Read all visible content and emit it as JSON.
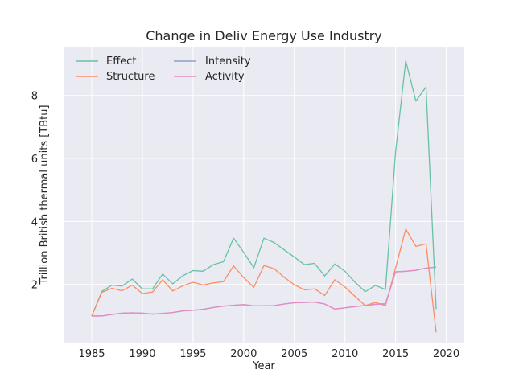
{
  "chart_data": {
    "type": "line",
    "title": "Change in Deliv Energy Use Industry",
    "xlabel": "Year",
    "ylabel": "Trillion British thermal units [TBtu]",
    "xlim": [
      1982.3,
      2021.7
    ],
    "ylim": [
      0.13,
      9.55
    ],
    "xticks": [
      1985,
      1990,
      1995,
      2000,
      2005,
      2010,
      2015,
      2020
    ],
    "yticks": [
      2,
      4,
      6,
      8
    ],
    "grid": true,
    "legend": {
      "placement": "top-left",
      "columns": 2
    },
    "x": [
      1985,
      1986,
      1987,
      1988,
      1989,
      1990,
      1991,
      1992,
      1993,
      1994,
      1995,
      1996,
      1997,
      1998,
      1999,
      2000,
      2001,
      2002,
      2003,
      2004,
      2005,
      2006,
      2007,
      2008,
      2009,
      2010,
      2011,
      2012,
      2013,
      2014,
      2015,
      2016,
      2017,
      2018,
      2019
    ],
    "series": [
      {
        "name": "Effect",
        "color": "#66c2a5",
        "values": [
          1.0,
          1.78,
          1.98,
          1.95,
          2.17,
          1.86,
          1.86,
          2.33,
          2.02,
          2.28,
          2.44,
          2.42,
          2.63,
          2.72,
          3.47,
          3.02,
          2.53,
          3.47,
          3.33,
          3.1,
          2.87,
          2.63,
          2.67,
          2.27,
          2.65,
          2.42,
          2.07,
          1.77,
          1.97,
          1.84,
          6.22,
          9.1,
          7.82,
          8.27,
          1.22
        ]
      },
      {
        "name": "Structure",
        "color": "#fc8d62",
        "values": [
          1.0,
          1.75,
          1.88,
          1.8,
          1.98,
          1.71,
          1.76,
          2.15,
          1.79,
          1.96,
          2.07,
          1.98,
          2.05,
          2.09,
          2.59,
          2.22,
          1.91,
          2.6,
          2.5,
          2.23,
          1.99,
          1.83,
          1.86,
          1.65,
          2.15,
          1.92,
          1.62,
          1.33,
          1.43,
          1.33,
          2.53,
          3.76,
          3.21,
          3.29,
          0.48
        ]
      },
      {
        "name": "Intensity",
        "color": "#8da0cb",
        "values": [
          1.0,
          1.0,
          1.05,
          1.09,
          1.1,
          1.09,
          1.06,
          1.08,
          1.11,
          1.16,
          1.18,
          1.21,
          1.27,
          1.31,
          1.34,
          1.36,
          1.32,
          1.32,
          1.33,
          1.38,
          1.42,
          1.43,
          1.44,
          1.38,
          1.22,
          1.26,
          1.3,
          1.33,
          1.37,
          1.39,
          2.4,
          2.42,
          2.45,
          2.52,
          2.55
        ]
      },
      {
        "name": "Activity",
        "color": "#e78ac3",
        "values": [
          1.0,
          1.0,
          1.05,
          1.09,
          1.1,
          1.09,
          1.06,
          1.08,
          1.11,
          1.16,
          1.18,
          1.21,
          1.27,
          1.31,
          1.34,
          1.36,
          1.32,
          1.32,
          1.33,
          1.38,
          1.42,
          1.43,
          1.44,
          1.38,
          1.22,
          1.26,
          1.3,
          1.33,
          1.37,
          1.39,
          2.4,
          2.42,
          2.45,
          2.52,
          2.55
        ]
      }
    ]
  }
}
